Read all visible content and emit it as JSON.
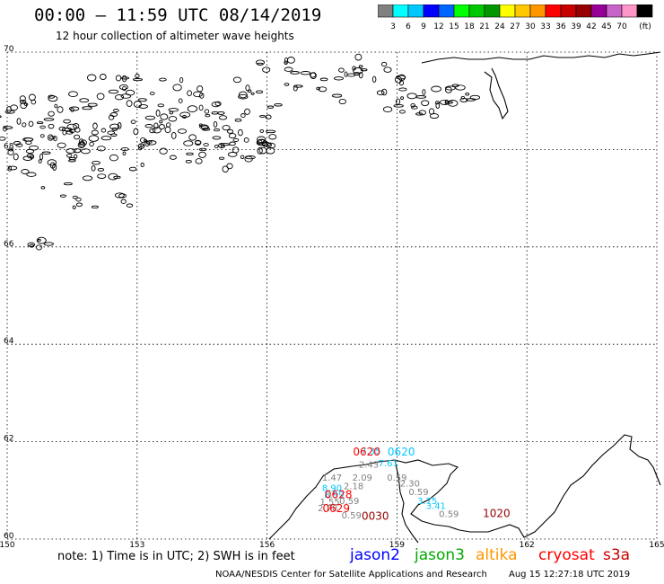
{
  "header": {
    "title": "00:00 – 11:59 UTC 08/14/2019",
    "subtitle": "12 hour collection of altimeter wave heights"
  },
  "colorbar": {
    "unit": "(ft)",
    "swatches": [
      "#808080",
      "#00ffff",
      "#00c8ff",
      "#0000ff",
      "#0064ff",
      "#00ff00",
      "#00c800",
      "#009600",
      "#ffff00",
      "#ffc800",
      "#ff9600",
      "#ff0000",
      "#c80000",
      "#960000",
      "#960096",
      "#c864c8",
      "#ff96c8",
      "#000000"
    ],
    "labels": [
      "3",
      "6",
      "9",
      "12",
      "15",
      "18",
      "21",
      "24",
      "27",
      "30",
      "33",
      "36",
      "39",
      "42",
      "45",
      "70"
    ]
  },
  "axes": {
    "x_ticks": [
      "150",
      "153",
      "156",
      "159",
      "162",
      "165"
    ],
    "y_ticks": [
      "70",
      "68",
      "66",
      "64",
      "62",
      "60"
    ],
    "lon_range": [
      150,
      165
    ],
    "lat_range": [
      60,
      70
    ]
  },
  "observations": [
    {
      "text": "7.35",
      "lon": 158.4,
      "lat": 61.74,
      "color": "#00c8ff"
    },
    {
      "text": "0620",
      "lon": 158.3,
      "lat": 61.72,
      "color": "#ff0000"
    },
    {
      "text": "0620",
      "lon": 159.1,
      "lat": 61.72,
      "color": "#00c8ff"
    },
    {
      "text": "7.61",
      "lon": 158.8,
      "lat": 61.49,
      "color": "#00c8ff"
    },
    {
      "text": "2.43",
      "lon": 158.35,
      "lat": 61.47,
      "color": "#808080"
    },
    {
      "text": "1.47",
      "lon": 157.5,
      "lat": 61.2,
      "color": "#808080"
    },
    {
      "text": "2.09",
      "lon": 158.2,
      "lat": 61.2,
      "color": "#808080"
    },
    {
      "text": "0.59",
      "lon": 159.0,
      "lat": 61.2,
      "color": "#808080"
    },
    {
      "text": "2.30",
      "lon": 159.3,
      "lat": 61.08,
      "color": "#808080"
    },
    {
      "text": "2.18",
      "lon": 158.0,
      "lat": 61.02,
      "color": "#808080"
    },
    {
      "text": "8.90",
      "lon": 157.5,
      "lat": 60.99,
      "color": "#00c8ff"
    },
    {
      "text": "0.59",
      "lon": 159.5,
      "lat": 60.9,
      "color": "#808080"
    },
    {
      "text": "8.99",
      "lon": 157.55,
      "lat": 60.85,
      "color": "#00c8ff"
    },
    {
      "text": "0628",
      "lon": 157.65,
      "lat": 60.84,
      "color": "#ff0000"
    },
    {
      "text": "3.75",
      "lon": 159.7,
      "lat": 60.72,
      "color": "#00c8ff"
    },
    {
      "text": "1.55",
      "lon": 157.45,
      "lat": 60.7,
      "color": "#808080"
    },
    {
      "text": "0.59",
      "lon": 157.9,
      "lat": 60.72,
      "color": "#808080"
    },
    {
      "text": "3.41",
      "lon": 159.9,
      "lat": 60.62,
      "color": "#00c8ff"
    },
    {
      "text": "2.78",
      "lon": 157.4,
      "lat": 60.57,
      "color": "#808080"
    },
    {
      "text": "0629",
      "lon": 157.6,
      "lat": 60.55,
      "color": "#ff0000"
    },
    {
      "text": "0.59",
      "lon": 160.2,
      "lat": 60.45,
      "color": "#808080"
    },
    {
      "text": "1020",
      "lon": 161.3,
      "lat": 60.45,
      "color": "#960000"
    },
    {
      "text": "0.59",
      "lon": 157.95,
      "lat": 60.42,
      "color": "#808080"
    },
    {
      "text": "0030",
      "lon": 158.5,
      "lat": 60.4,
      "color": "#960000"
    }
  ],
  "footer": {
    "note": "note:  1) Time is in UTC;  2) SWH is in feet",
    "satellites": [
      {
        "name": "jason2",
        "color": "#0000ff"
      },
      {
        "name": "jason3",
        "color": "#00aa00"
      },
      {
        "name": "altika",
        "color": "#ff9600"
      },
      {
        "name": "cryosat",
        "color": "#ff0000"
      },
      {
        "name": "s3a",
        "color": "#c80000"
      }
    ],
    "credit": "NOAA/NESDIS Center for Satellite Applications and Research",
    "timestamp": "Aug 15 12:27:18 UTC 2019"
  }
}
